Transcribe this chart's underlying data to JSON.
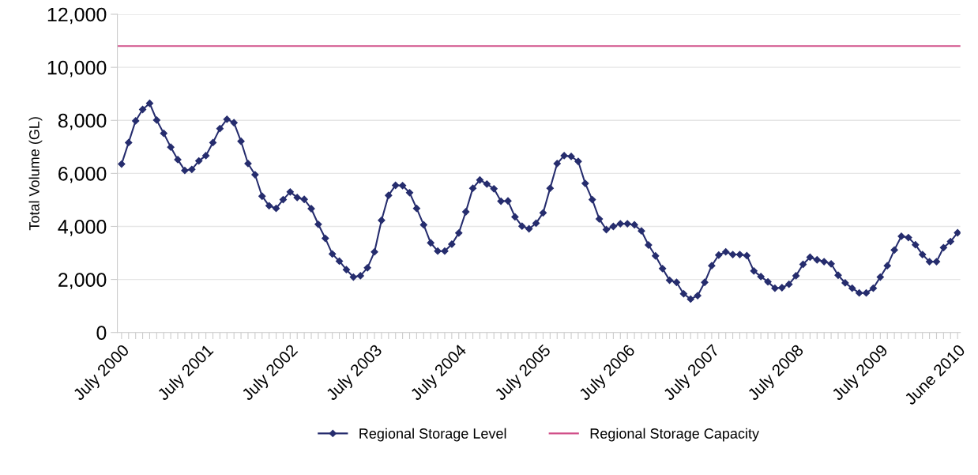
{
  "chart_data": {
    "type": "line",
    "ylabel": "Total Volume (GL)",
    "categories": [
      "July 2000",
      null,
      null,
      null,
      null,
      null,
      null,
      null,
      null,
      null,
      null,
      null,
      "July 2001",
      null,
      null,
      null,
      null,
      null,
      null,
      null,
      null,
      null,
      null,
      null,
      "July 2002",
      null,
      null,
      null,
      null,
      null,
      null,
      null,
      null,
      null,
      null,
      null,
      "July 2003",
      null,
      null,
      null,
      null,
      null,
      null,
      null,
      null,
      null,
      null,
      null,
      "July 2004",
      null,
      null,
      null,
      null,
      null,
      null,
      null,
      null,
      null,
      null,
      null,
      "July 2005",
      null,
      null,
      null,
      null,
      null,
      null,
      null,
      null,
      null,
      null,
      null,
      "July 2006",
      null,
      null,
      null,
      null,
      null,
      null,
      null,
      null,
      null,
      null,
      null,
      "July 2007",
      null,
      null,
      null,
      null,
      null,
      null,
      null,
      null,
      null,
      null,
      null,
      "July 2008",
      null,
      null,
      null,
      null,
      null,
      null,
      null,
      null,
      null,
      null,
      null,
      "July 2009",
      null,
      null,
      null,
      null,
      null,
      null,
      null,
      null,
      null,
      null,
      "June 2010"
    ],
    "series": [
      {
        "name": "Regional Storage Level",
        "color": "#262d6e",
        "values": [
          6350,
          7160,
          7980,
          8410,
          8640,
          8010,
          7510,
          6990,
          6520,
          6110,
          6150,
          6470,
          6670,
          7160,
          7690,
          8040,
          7910,
          7210,
          6370,
          5950,
          5140,
          4780,
          4680,
          5010,
          5300,
          5090,
          5020,
          4670,
          4080,
          3550,
          2960,
          2690,
          2370,
          2090,
          2140,
          2440,
          3040,
          4230,
          5170,
          5550,
          5540,
          5270,
          4680,
          4060,
          3380,
          3070,
          3070,
          3330,
          3750,
          4550,
          5440,
          5750,
          5600,
          5420,
          4950,
          4960,
          4360,
          4010,
          3910,
          4120,
          4510,
          5440,
          6370,
          6670,
          6640,
          6450,
          5620,
          5010,
          4280,
          3880,
          4000,
          4100,
          4100,
          4060,
          3830,
          3300,
          2890,
          2410,
          1970,
          1890,
          1460,
          1260,
          1390,
          1890,
          2520,
          2920,
          3040,
          2940,
          2940,
          2900,
          2320,
          2110,
          1910,
          1670,
          1690,
          1820,
          2140,
          2570,
          2840,
          2740,
          2670,
          2590,
          2160,
          1870,
          1670,
          1490,
          1490,
          1670,
          2090,
          2520,
          3110,
          3630,
          3580,
          3310,
          2940,
          2670,
          2670,
          3200,
          3430,
          3760
        ]
      }
    ],
    "ref_lines": [
      {
        "axis": "y",
        "value": 10800,
        "label": "Regional Storage Capacity",
        "color": "#d1508a"
      }
    ],
    "ylim": [
      0,
      12000
    ],
    "yticks": [
      {
        "value": 0,
        "label": "0"
      },
      {
        "value": 2000,
        "label": "2,000"
      },
      {
        "value": 4000,
        "label": "4,000"
      },
      {
        "value": 6000,
        "label": "6,000"
      },
      {
        "value": 8000,
        "label": "8,000"
      },
      {
        "value": 10000,
        "label": "10,000"
      },
      {
        "value": 12000,
        "label": "12,000"
      }
    ],
    "grid": "y",
    "legend": "bottom",
    "marker": "diamond",
    "line_style": "solid"
  }
}
